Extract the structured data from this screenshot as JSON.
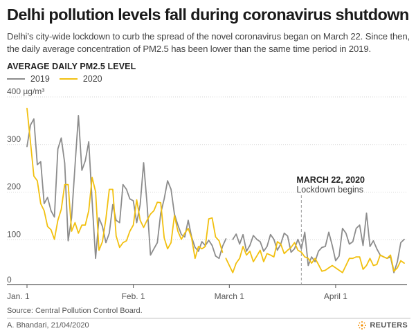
{
  "title": "Delhi pollution levels fall during coronavirus shutdown",
  "subtitle": "Delhi’s city-wide lockdown to curb the spread of the novel coronavirus began on March 22. Since then, the daily average concentration of PM2.5 has been lower than the same time period in 2019.",
  "chart_label": "AVERAGE DAILY PM2.5 LEVEL",
  "source": "Source: Central Pollution Control Board.",
  "credit": "A. Bhandari, 21/04/2020",
  "brand": "REUTERS",
  "brand_icon": "reuters-logo-icon",
  "colors": {
    "series_2019": "#8c8c8c",
    "series_2020": "#f2c00f",
    "grid": "#d6d6d6",
    "axis": "#555555",
    "annotation_line": "#9a9a9a"
  },
  "chart_data": {
    "type": "line",
    "xlabel": "",
    "ylabel": "",
    "y_unit_label": "400 µg/m³",
    "ylim": [
      0,
      400
    ],
    "xlim": [
      1,
      111
    ],
    "y_ticks": [
      {
        "value": 400,
        "label": "400 µg/m³"
      },
      {
        "value": 300,
        "label": "300"
      },
      {
        "value": 200,
        "label": "200"
      },
      {
        "value": 100,
        "label": "100"
      },
      {
        "value": 0,
        "label": "0"
      }
    ],
    "x_ticks": [
      {
        "value": 1,
        "label": "Jan. 1"
      },
      {
        "value": 32,
        "label": "Feb. 1"
      },
      {
        "value": 60,
        "label": "March 1"
      },
      {
        "value": 91,
        "label": "April 1"
      }
    ],
    "grid": true,
    "legend_position": "top-left",
    "x_axis_meaning": "day of year",
    "annotation": {
      "x": 81,
      "title": "MARCH 22, 2020",
      "text": "Lockdown begins"
    },
    "series": [
      {
        "name": "2019",
        "segments": [
          [
            [
              1,
              290
            ],
            [
              2,
              335
            ],
            [
              3,
              348
            ],
            [
              4,
              252
            ],
            [
              5,
              258
            ],
            [
              6,
              170
            ],
            [
              7,
              183
            ],
            [
              8,
              155
            ],
            [
              9,
              142
            ],
            [
              10,
              285
            ],
            [
              11,
              308
            ],
            [
              12,
              255
            ],
            [
              13,
              92
            ],
            [
              14,
              140
            ],
            [
              15,
              250
            ],
            [
              16,
              355
            ],
            [
              17,
              240
            ],
            [
              18,
              260
            ],
            [
              19,
              300
            ],
            [
              20,
              175
            ],
            [
              21,
              55
            ],
            [
              22,
              140
            ],
            [
              23,
              122
            ],
            [
              24,
              88
            ],
            [
              25,
              108
            ],
            [
              26,
              168
            ],
            [
              27,
              135
            ],
            [
              28,
              130
            ],
            [
              29,
              210
            ],
            [
              30,
              200
            ],
            [
              31,
              180
            ],
            [
              32,
              176
            ],
            [
              33,
              130
            ],
            [
              34,
              168
            ],
            [
              35,
              256
            ],
            [
              36,
              170
            ],
            [
              37,
              62
            ],
            [
              38,
              75
            ],
            [
              39,
              88
            ],
            [
              40,
              150
            ],
            [
              41,
              180
            ],
            [
              42,
              218
            ],
            [
              43,
              200
            ],
            [
              44,
              148
            ],
            [
              45,
              125
            ],
            [
              46,
              105
            ],
            [
              47,
              100
            ],
            [
              48,
              135
            ],
            [
              49,
              100
            ],
            [
              50,
              78
            ],
            [
              51,
              70
            ],
            [
              52,
              90
            ],
            [
              53,
              82
            ],
            [
              54,
              93
            ],
            [
              55,
              82
            ],
            [
              56,
              60
            ],
            [
              57,
              55
            ],
            [
              58,
              80
            ],
            [
              59,
              96
            ]
          ],
          [
            [
              61,
              95
            ],
            [
              62,
              106
            ],
            [
              63,
              85
            ],
            [
              64,
              105
            ],
            [
              65,
              70
            ],
            [
              66,
              82
            ],
            [
              67,
              103
            ],
            [
              68,
              95
            ],
            [
              69,
              90
            ],
            [
              70,
              70
            ],
            [
              71,
              80
            ],
            [
              72,
              105
            ],
            [
              73,
              95
            ],
            [
              74,
              72
            ],
            [
              75,
              85
            ],
            [
              76,
              108
            ],
            [
              77,
              102
            ],
            [
              78,
              68
            ],
            [
              79,
              75
            ],
            [
              80,
              95
            ],
            [
              81,
              75
            ],
            [
              82,
              110
            ],
            [
              83,
              40
            ],
            [
              84,
              58
            ],
            [
              85,
              48
            ],
            [
              86,
              70
            ],
            [
              87,
              78
            ],
            [
              88,
              80
            ],
            [
              89,
              110
            ],
            [
              90,
              82
            ],
            [
              91,
              50
            ],
            [
              92,
              60
            ],
            [
              93,
              118
            ],
            [
              94,
              108
            ],
            [
              95,
              85
            ],
            [
              96,
              90
            ],
            [
              97,
              118
            ],
            [
              98,
              125
            ],
            [
              99,
              82
            ],
            [
              100,
              150
            ],
            [
              101,
              80
            ],
            [
              102,
              92
            ],
            [
              103,
              75
            ],
            [
              104,
              62
            ],
            [
              105,
              58
            ],
            [
              106,
              55
            ],
            [
              107,
              58
            ],
            [
              108,
              25
            ],
            [
              109,
              48
            ],
            [
              110,
              88
            ],
            [
              111,
              95
            ]
          ]
        ]
      },
      {
        "name": "2020",
        "segments": [
          [
            [
              1,
              370
            ],
            [
              2,
              300
            ],
            [
              3,
              228
            ],
            [
              4,
              218
            ],
            [
              5,
              170
            ],
            [
              6,
              155
            ],
            [
              7,
              122
            ],
            [
              8,
              115
            ],
            [
              9,
              95
            ],
            [
              10,
              135
            ],
            [
              11,
              158
            ],
            [
              12,
              210
            ],
            [
              13,
              210
            ],
            [
              14,
              112
            ],
            [
              15,
              130
            ],
            [
              16,
              108
            ],
            [
              17,
              125
            ],
            [
              18,
              125
            ],
            [
              19,
              155
            ],
            [
              20,
              225
            ],
            [
              21,
              195
            ],
            [
              22,
              72
            ],
            [
              23,
              90
            ],
            [
              24,
              138
            ],
            [
              25,
              200
            ],
            [
              26,
              200
            ],
            [
              27,
              102
            ],
            [
              28,
              78
            ],
            [
              29,
              88
            ],
            [
              30,
              92
            ],
            [
              31,
              112
            ],
            [
              32,
              125
            ],
            [
              33,
              178
            ],
            [
              34,
              135
            ],
            [
              35,
              120
            ],
            [
              36,
              135
            ],
            [
              37,
              148
            ],
            [
              38,
              155
            ],
            [
              39,
              173
            ],
            [
              40,
              172
            ],
            [
              41,
              98
            ],
            [
              42,
              75
            ],
            [
              43,
              88
            ],
            [
              44,
              145
            ],
            [
              45,
              112
            ],
            [
              46,
              95
            ],
            [
              47,
              108
            ],
            [
              48,
              118
            ],
            [
              49,
              98
            ],
            [
              50,
              55
            ],
            [
              51,
              80
            ],
            [
              52,
              75
            ],
            [
              53,
              80
            ],
            [
              54,
              138
            ],
            [
              55,
              140
            ],
            [
              56,
              100
            ],
            [
              57,
              92
            ],
            [
              58,
              68
            ]
          ],
          [
            [
              59,
              55
            ],
            [
              60,
              40
            ],
            [
              61,
              25
            ],
            [
              62,
              45
            ],
            [
              63,
              55
            ],
            [
              64,
              80
            ],
            [
              65,
              62
            ],
            [
              66,
              70
            ],
            [
              67,
              48
            ],
            [
              68,
              60
            ],
            [
              69,
              72
            ],
            [
              70,
              48
            ],
            [
              71,
              65
            ],
            [
              72,
              62
            ],
            [
              73,
              58
            ],
            [
              74,
              90
            ],
            [
              75,
              85
            ],
            [
              76,
              65
            ],
            [
              77,
              72
            ],
            [
              78,
              78
            ],
            [
              79,
              88
            ],
            [
              80,
              72
            ],
            [
              81,
              68
            ],
            [
              82,
              58
            ],
            [
              83,
              55
            ],
            [
              84,
              45
            ],
            [
              85,
              55
            ],
            [
              86,
              42
            ],
            [
              87,
              28
            ],
            [
              88,
              30
            ],
            [
              89,
              35
            ],
            [
              90,
              40
            ],
            [
              91,
              35
            ],
            [
              92,
              30
            ],
            [
              93,
              25
            ],
            [
              94,
              40
            ],
            [
              95,
              55
            ],
            [
              96,
              55
            ],
            [
              97,
              58
            ],
            [
              98,
              58
            ],
            [
              99,
              32
            ],
            [
              100,
              40
            ],
            [
              101,
              55
            ],
            [
              102,
              40
            ],
            [
              103,
              42
            ],
            [
              104,
              62
            ],
            [
              105,
              58
            ],
            [
              106,
              55
            ],
            [
              107,
              62
            ],
            [
              108,
              28
            ],
            [
              109,
              35
            ],
            [
              110,
              50
            ],
            [
              111,
              45
            ]
          ]
        ]
      }
    ]
  }
}
